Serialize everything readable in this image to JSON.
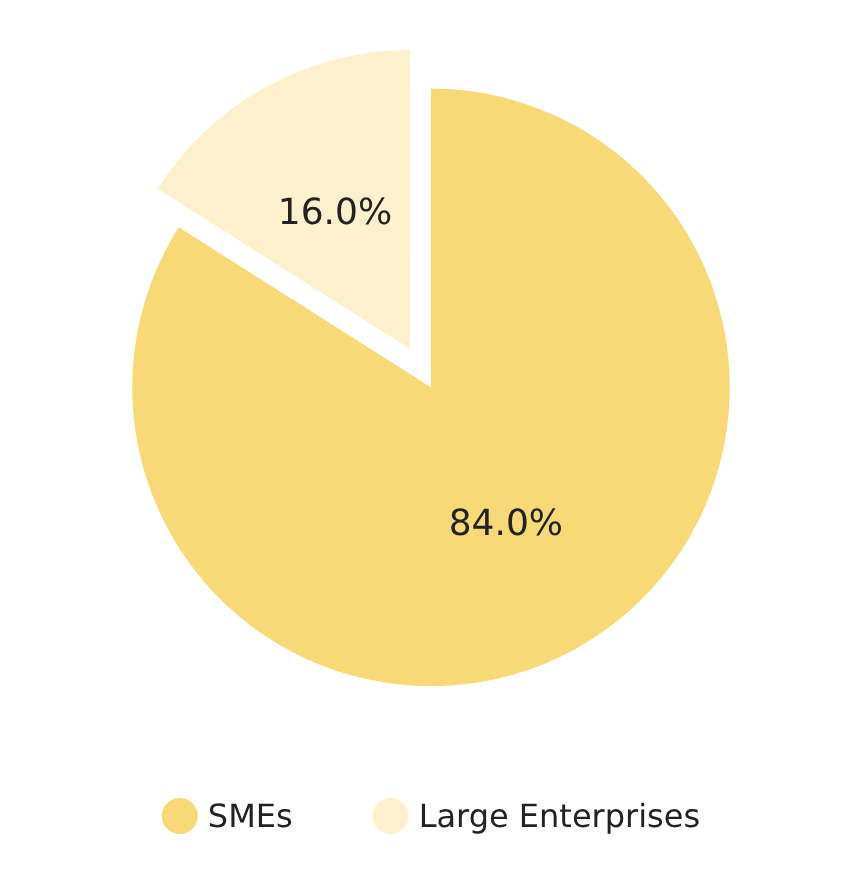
{
  "chart_data": {
    "type": "pie",
    "categories": [
      "SMEs",
      "Large Enterprises"
    ],
    "values": [
      84,
      16
    ],
    "colors": [
      "#f7d978",
      "#fdf0cc"
    ],
    "value_labels": [
      "84.0%",
      "16.0%"
    ],
    "legend": "bottom"
  }
}
